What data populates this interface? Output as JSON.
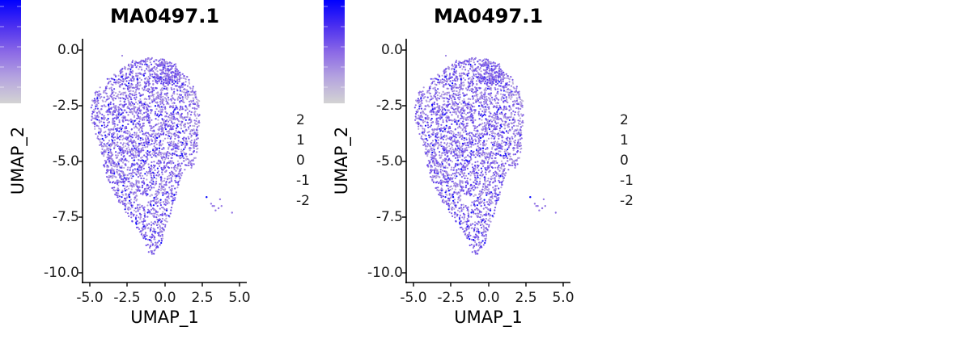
{
  "chart_data": [
    {
      "type": "scatter",
      "title": "MA0497.1",
      "xlabel": "UMAP_1",
      "ylabel": "UMAP_2",
      "xlim": [
        -5.5,
        5.5
      ],
      "ylim": [
        -10.5,
        0.5
      ],
      "x_ticks": [
        "-5.0",
        "-2.5",
        "0.0",
        "2.5",
        "5.0"
      ],
      "y_ticks": [
        "0.0",
        "-2.5",
        "-5.0",
        "-7.5",
        "-10.0"
      ],
      "grid": false,
      "legend": {
        "type": "colorbar",
        "position": "right",
        "ticks": [
          "2",
          "1",
          "0",
          "-1",
          "-2"
        ],
        "low_color": "#D3D3D3",
        "high_color": "#0000FF",
        "range": [
          -2.6,
          2.3
        ]
      },
      "cluster_shape": {
        "description": "Dense cluster of ~4000 cells spanning UMAP_1 -5 to 2.5 and UMAP_2 -9.2 to -0.3, wide top narrowing to a point near (-0.8, -9.2)",
        "outliers": [
          [
            2.8,
            -6.6
          ],
          [
            3.1,
            -6.9
          ],
          [
            3.2,
            -7.0
          ],
          [
            3.3,
            -7.0
          ],
          [
            3.4,
            -7.2
          ],
          [
            3.6,
            -7.1
          ],
          [
            3.7,
            -6.7
          ],
          [
            3.8,
            -7.0
          ],
          [
            4.5,
            -7.3
          ]
        ]
      }
    },
    {
      "type": "scatter",
      "title": "MA0497.1",
      "xlabel": "UMAP_1",
      "ylabel": "UMAP_2",
      "xlim": [
        -5.5,
        5.5
      ],
      "ylim": [
        -10.5,
        0.5
      ],
      "x_ticks": [
        "-5.0",
        "-2.5",
        "0.0",
        "2.5",
        "5.0"
      ],
      "y_ticks": [
        "0.0",
        "-2.5",
        "-5.0",
        "-7.5",
        "-10.0"
      ],
      "grid": false,
      "legend": {
        "type": "colorbar",
        "position": "right",
        "ticks": [
          "2",
          "1",
          "0",
          "-1",
          "-2"
        ],
        "low_color": "#D3D3D3",
        "high_color": "#0000FF",
        "range": [
          -2.6,
          2.3
        ]
      },
      "cluster_shape": {
        "description": "Identical to panel 1",
        "outliers": [
          [
            2.8,
            -6.6
          ],
          [
            3.1,
            -6.9
          ],
          [
            3.2,
            -7.0
          ],
          [
            3.3,
            -7.0
          ],
          [
            3.4,
            -7.2
          ],
          [
            3.6,
            -7.1
          ],
          [
            3.7,
            -6.7
          ],
          [
            3.8,
            -7.0
          ],
          [
            4.5,
            -7.3
          ]
        ]
      }
    }
  ],
  "panels": [
    {
      "title": "MA0497.1",
      "xlabel": "UMAP_1",
      "ylabel": "UMAP_2",
      "x_ticks": [
        "-5.0",
        "-2.5",
        "0.0",
        "2.5",
        "5.0"
      ],
      "y_ticks": [
        "0.0",
        "-2.5",
        "-5.0",
        "-7.5",
        "-10.0"
      ],
      "colorbar_ticks": [
        "2",
        "1",
        "0",
        "-1",
        "-2"
      ]
    },
    {
      "title": "MA0497.1",
      "xlabel": "UMAP_1",
      "ylabel": "UMAP_2",
      "x_ticks": [
        "-5.0",
        "-2.5",
        "0.0",
        "2.5",
        "5.0"
      ],
      "y_ticks": [
        "0.0",
        "-2.5",
        "-5.0",
        "-7.5",
        "-10.0"
      ],
      "colorbar_ticks": [
        "2",
        "1",
        "0",
        "-1",
        "-2"
      ]
    }
  ],
  "colors": {
    "high": "#0000FF",
    "low": "#D3D3D3",
    "axis": "#000000"
  }
}
